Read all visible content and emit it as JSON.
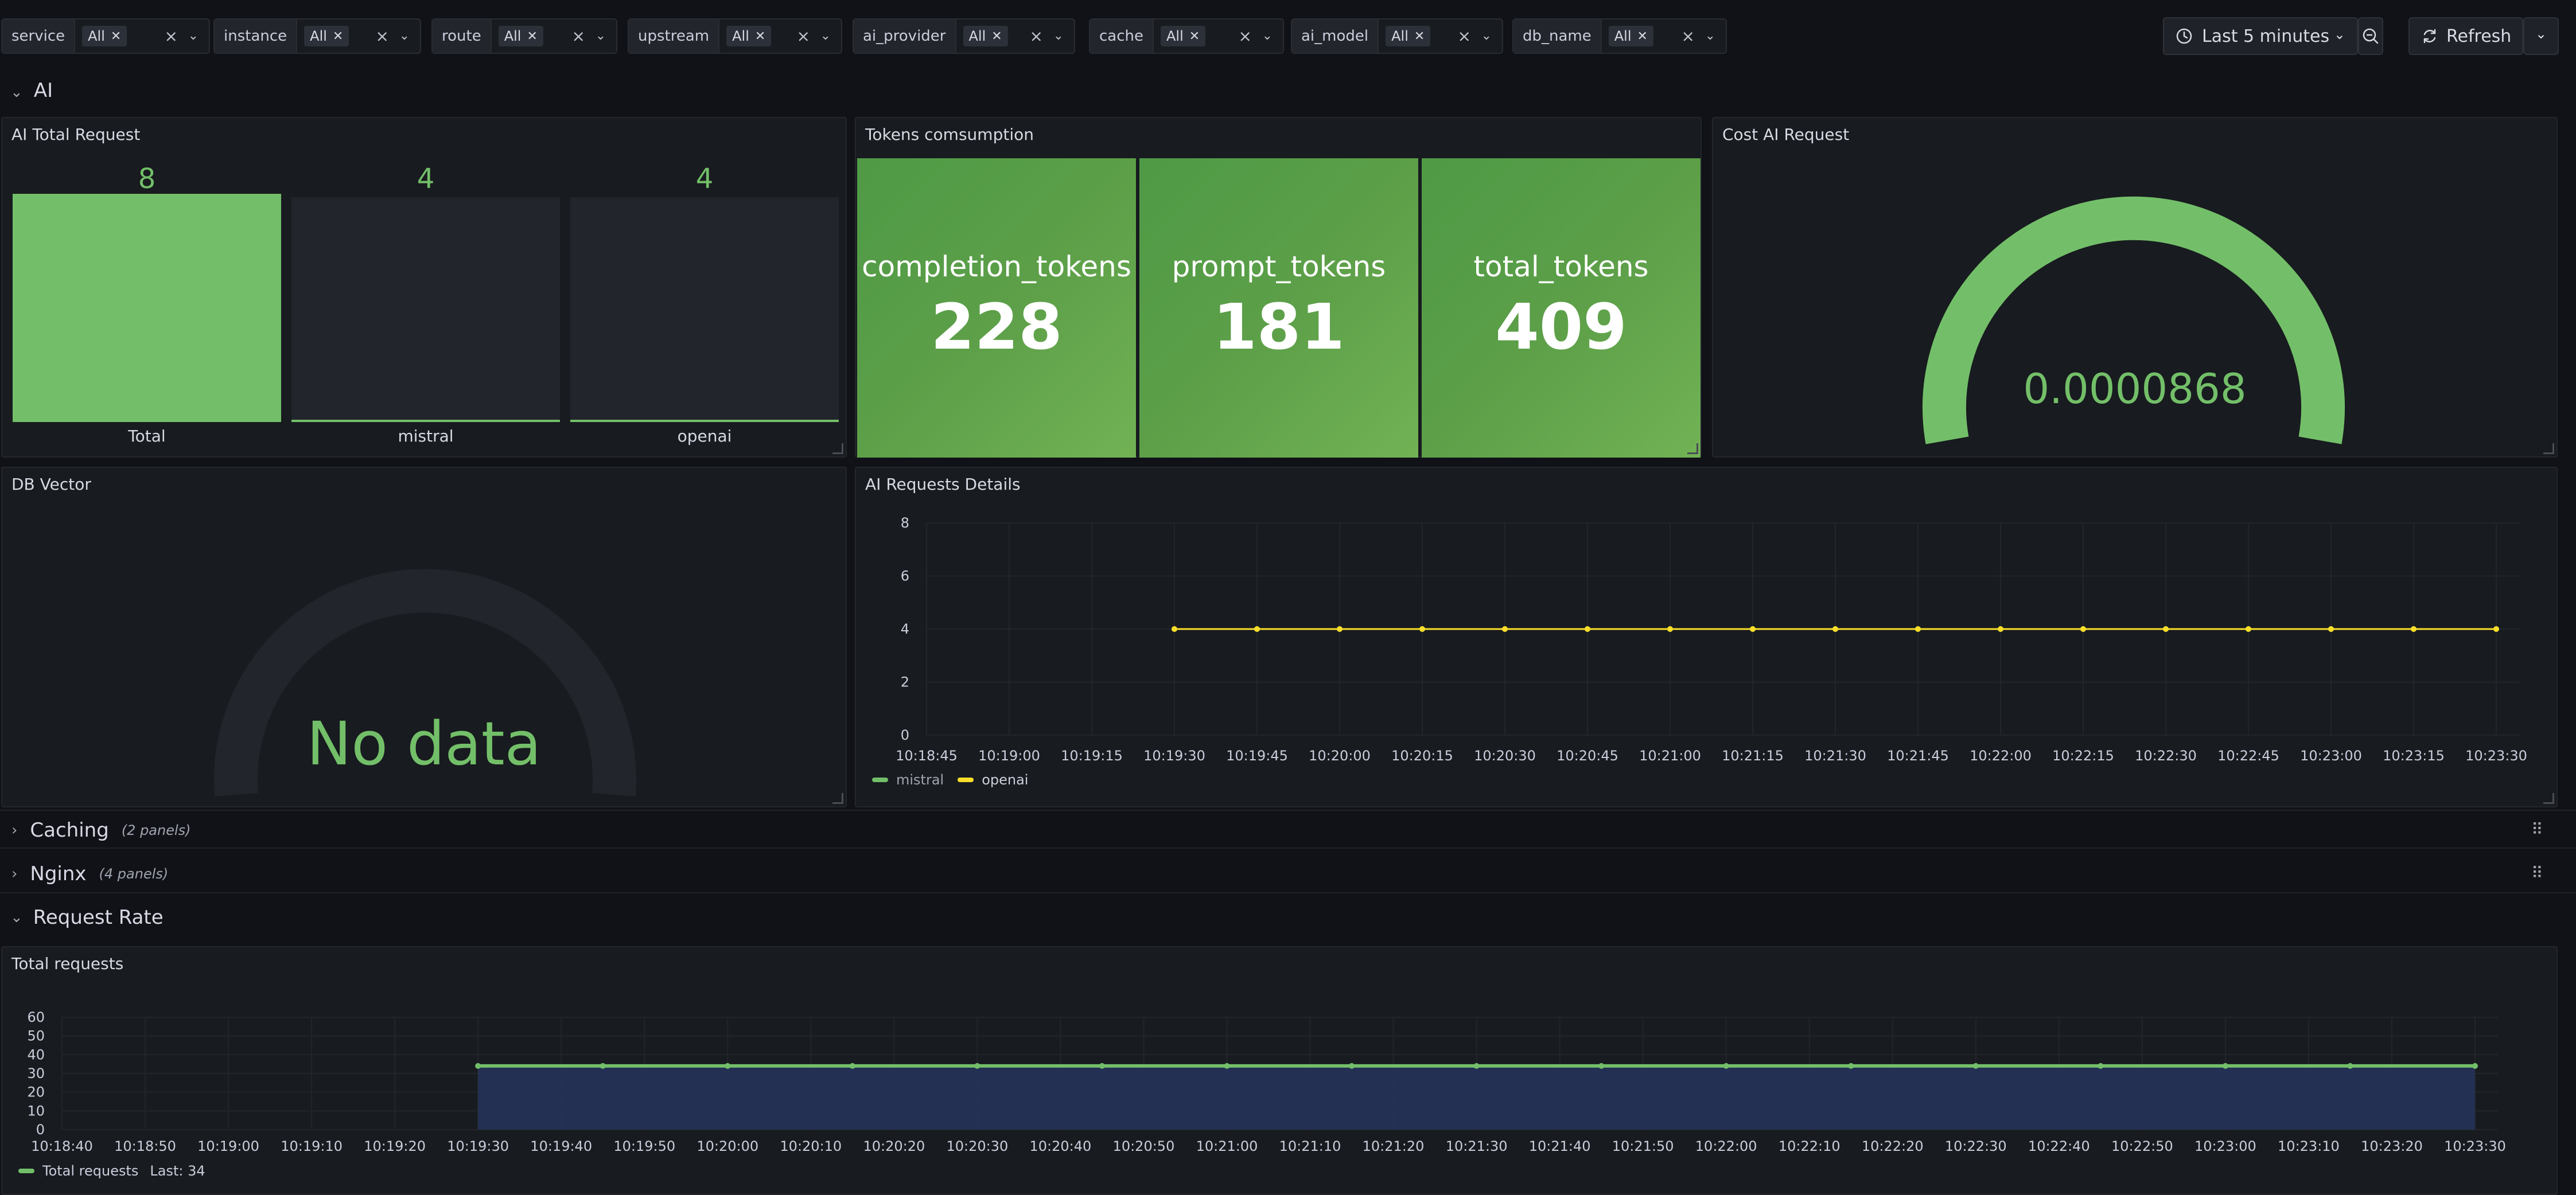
{
  "variables": [
    {
      "label": "service",
      "value": "All"
    },
    {
      "label": "instance",
      "value": "All"
    },
    {
      "label": "route",
      "value": "All"
    },
    {
      "label": "upstream",
      "value": "All"
    },
    {
      "label": "ai_provider",
      "value": "All"
    },
    {
      "label": "cache",
      "value": "All"
    },
    {
      "label": "ai_model",
      "value": "All"
    },
    {
      "label": "db_name",
      "value": "All"
    }
  ],
  "toolbar": {
    "time_range": "Last 5 minutes",
    "refresh_label": "Refresh"
  },
  "rows": {
    "ai": {
      "title": "AI"
    },
    "caching": {
      "title": "Caching",
      "count": "(2 panels)"
    },
    "nginx": {
      "title": "Nginx",
      "count": "(4 panels)"
    },
    "request_rate": {
      "title": "Request Rate"
    }
  },
  "panels": {
    "ai_total": {
      "title": "AI Total Request",
      "bars": [
        {
          "label": "Total",
          "value": "8",
          "fill": 1.0
        },
        {
          "label": "mistral",
          "value": "4",
          "fill": 0.0
        },
        {
          "label": "openai",
          "value": "4",
          "fill": 0.0
        }
      ]
    },
    "tokens": {
      "title": "Tokens comsumption",
      "tiles": [
        {
          "name": "completion_tokens",
          "value": "228"
        },
        {
          "name": "prompt_tokens",
          "value": "181"
        },
        {
          "name": "total_tokens",
          "value": "409"
        }
      ]
    },
    "cost": {
      "title": "Cost AI Request",
      "value": "0.0000868"
    },
    "db_vector": {
      "title": "DB Vector",
      "value": "No data"
    },
    "ai_details": {
      "title": "AI Requests Details"
    },
    "total_requests": {
      "title": "Total requests"
    }
  },
  "colors": {
    "green": "#73bf69",
    "yellow": "#fade2a",
    "blue_fill": "#253156"
  },
  "chart_data": [
    {
      "type": "line",
      "title": "AI Requests Details",
      "ylim": [
        0,
        8
      ],
      "yticks": [
        "0",
        "2",
        "4",
        "6",
        "8"
      ],
      "xticks": [
        "10:18:45",
        "10:19:00",
        "10:19:15",
        "10:19:30",
        "10:19:45",
        "10:20:00",
        "10:20:15",
        "10:20:30",
        "10:20:45",
        "10:21:00",
        "10:21:15",
        "10:21:30",
        "10:21:45",
        "10:22:00",
        "10:22:15",
        "10:22:30",
        "10:22:45",
        "10:23:00",
        "10:23:15",
        "10:23:30"
      ],
      "x": [
        "10:19:30",
        "10:19:45",
        "10:20:00",
        "10:20:15",
        "10:20:30",
        "10:20:45",
        "10:21:00",
        "10:21:15",
        "10:21:30",
        "10:21:45",
        "10:22:00",
        "10:22:15",
        "10:22:30",
        "10:22:45",
        "10:23:00",
        "10:23:15",
        "10:23:30"
      ],
      "series": [
        {
          "name": "mistral",
          "color": "#73bf69",
          "values": [
            4,
            4,
            4,
            4,
            4,
            4,
            4,
            4,
            4,
            4,
            4,
            4,
            4,
            4,
            4,
            4,
            4
          ]
        },
        {
          "name": "openai",
          "color": "#fade2a",
          "values": [
            4,
            4,
            4,
            4,
            4,
            4,
            4,
            4,
            4,
            4,
            4,
            4,
            4,
            4,
            4,
            4,
            4
          ]
        }
      ]
    },
    {
      "type": "area",
      "title": "Total requests",
      "ylim": [
        0,
        60
      ],
      "yticks": [
        "0",
        "10",
        "20",
        "30",
        "40",
        "50",
        "60"
      ],
      "xticks": [
        "10:18:40",
        "10:18:50",
        "10:19:00",
        "10:19:10",
        "10:19:20",
        "10:19:30",
        "10:19:40",
        "10:19:50",
        "10:20:00",
        "10:20:10",
        "10:20:20",
        "10:20:30",
        "10:20:40",
        "10:20:50",
        "10:21:00",
        "10:21:10",
        "10:21:20",
        "10:21:30",
        "10:21:40",
        "10:21:50",
        "10:22:00",
        "10:22:10",
        "10:22:20",
        "10:22:30",
        "10:22:40",
        "10:22:50",
        "10:23:00",
        "10:23:10",
        "10:23:20",
        "10:23:30"
      ],
      "x": [
        "10:19:30",
        "10:19:45",
        "10:20:00",
        "10:20:15",
        "10:20:30",
        "10:20:45",
        "10:21:00",
        "10:21:15",
        "10:21:30",
        "10:21:45",
        "10:22:00",
        "10:22:15",
        "10:22:30",
        "10:22:45",
        "10:23:00",
        "10:23:15",
        "10:23:30"
      ],
      "series": [
        {
          "name": "Total requests",
          "color": "#73bf69",
          "values": [
            34,
            34,
            34,
            34,
            34,
            34,
            34,
            34,
            34,
            34,
            34,
            34,
            34,
            34,
            34,
            34,
            34
          ]
        }
      ],
      "legend_stat": "Last: 34"
    }
  ]
}
